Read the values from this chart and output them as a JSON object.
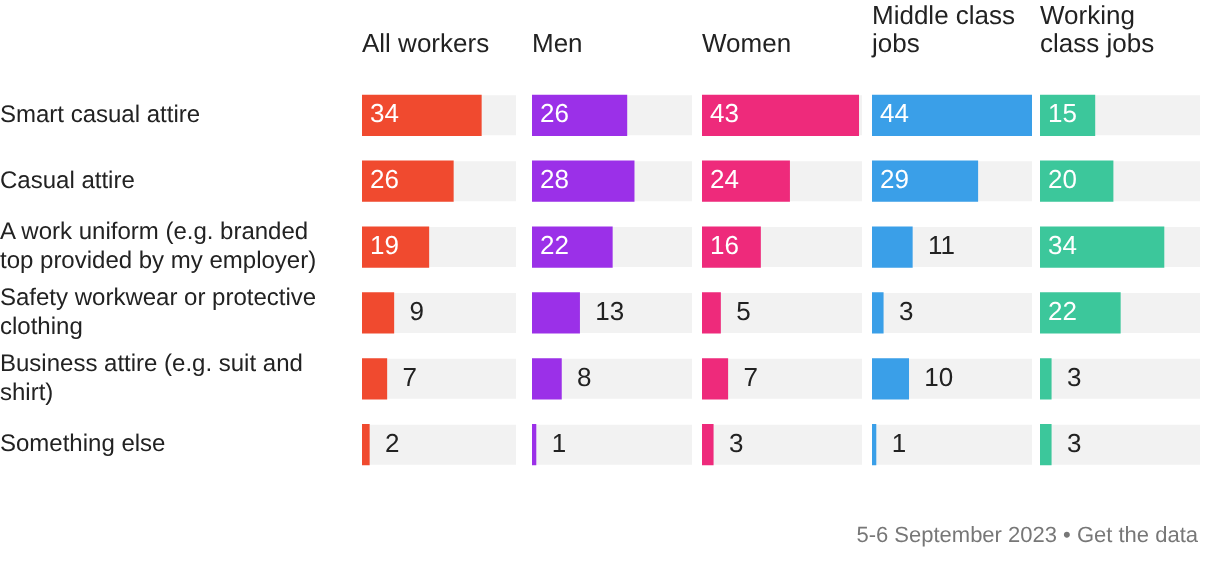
{
  "chart_data": [
    {
      "type": "bar",
      "orientation": "horizontal",
      "title": "All workers",
      "categories": [
        "Smart casual attire",
        "Casual attire",
        "A work uniform (e.g. branded top provided by my employer)",
        "Safety workwear or protective clothing",
        "Business attire (e.g. suit and shirt)",
        "Something else"
      ],
      "values": [
        34,
        26,
        19,
        9,
        7,
        2
      ],
      "color": "#f04a2f",
      "xlim": [
        0,
        44
      ],
      "data_labels": true,
      "tick_labels": "y",
      "annotations": [
        "5-6 September 2023 • Get the data"
      ]
    },
    {
      "type": "bar",
      "orientation": "horizontal",
      "title": "Men",
      "categories": [
        null,
        null,
        null,
        null,
        null,
        null
      ],
      "values": [
        26,
        28,
        22,
        13,
        8,
        1
      ],
      "color": "#9b30e8",
      "xlim": [
        0,
        44
      ],
      "data_labels": true,
      "tick_labels": false
    },
    {
      "type": "bar",
      "orientation": "horizontal",
      "title": "Women",
      "categories": [
        null,
        null,
        null,
        null,
        null,
        null
      ],
      "values": [
        43,
        24,
        16,
        5,
        7,
        3
      ],
      "color": "#ee2a7b",
      "xlim": [
        0,
        44
      ],
      "data_labels": true,
      "tick_labels": false
    },
    {
      "type": "bar",
      "orientation": "horizontal",
      "title": "Middle class jobs",
      "categories": [
        null,
        null,
        null,
        null,
        null,
        null
      ],
      "values": [
        44,
        29,
        11,
        3,
        10,
        1
      ],
      "color": "#3a9fe8",
      "xlim": [
        0,
        44
      ],
      "data_labels": true,
      "tick_labels": false
    },
    {
      "type": "bar",
      "orientation": "horizontal",
      "title": "Working class jobs",
      "categories": [
        null,
        null,
        null,
        null,
        null,
        null
      ],
      "values": [
        15,
        20,
        34,
        22,
        3,
        3
      ],
      "color": "#3cc79b",
      "xlim": [
        0,
        44
      ],
      "data_labels": true,
      "tick_labels": false
    }
  ]
}
